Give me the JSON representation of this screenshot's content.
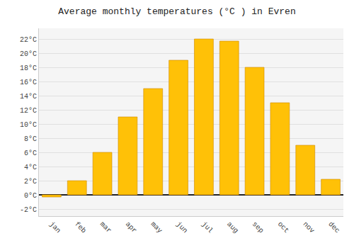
{
  "chart_data": {
    "type": "bar",
    "title": "Average monthly temperatures (°C ) in Evren",
    "categories": [
      "jan",
      "feb",
      "mar",
      "apr",
      "may",
      "jun",
      "jul",
      "aug",
      "sep",
      "oct",
      "nov",
      "dec"
    ],
    "values": [
      -0.3,
      2.0,
      6.0,
      11.0,
      15.0,
      19.0,
      22.0,
      21.7,
      18.0,
      13.0,
      7.0,
      2.2
    ],
    "color": "#FFC107",
    "ylim": [
      -3.0,
      23.5
    ],
    "yticks": [
      {
        "value": -2,
        "label": "-2°C"
      },
      {
        "value": 0,
        "label": "0°C"
      },
      {
        "value": 2,
        "label": "2°C"
      },
      {
        "value": 4,
        "label": "4°C"
      },
      {
        "value": 6,
        "label": "6°C"
      },
      {
        "value": 8,
        "label": "8°C"
      },
      {
        "value": 10,
        "label": "10°C"
      },
      {
        "value": 12,
        "label": "12°C"
      },
      {
        "value": 14,
        "label": "14°C"
      },
      {
        "value": 16,
        "label": "16°C"
      },
      {
        "value": 18,
        "label": "18°C"
      },
      {
        "value": 20,
        "label": "20°C"
      },
      {
        "value": 22,
        "label": "22°C"
      }
    ],
    "grid": true
  }
}
